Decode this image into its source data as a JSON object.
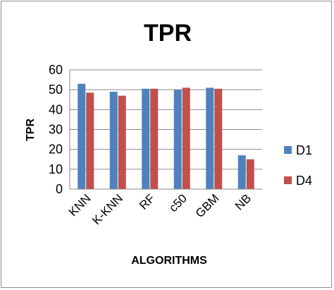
{
  "chart_data": {
    "type": "bar",
    "title": "TPR",
    "xlabel": "ALGORITHMS",
    "ylabel": "TPR",
    "categories": [
      "KNN",
      "K-KNN",
      "RF",
      "c50",
      "GBM",
      "NB"
    ],
    "series": [
      {
        "name": "D1",
        "values": [
          53,
          49,
          50.5,
          50,
          51,
          17
        ],
        "color": "#4f81bd"
      },
      {
        "name": "D4",
        "values": [
          48.5,
          47,
          50.5,
          51,
          50.5,
          15
        ],
        "color": "#c0504d"
      }
    ],
    "ylim": [
      0,
      60
    ],
    "yticks": [
      0,
      10,
      20,
      30,
      40,
      50,
      60
    ],
    "grid": true,
    "legend": "right"
  }
}
